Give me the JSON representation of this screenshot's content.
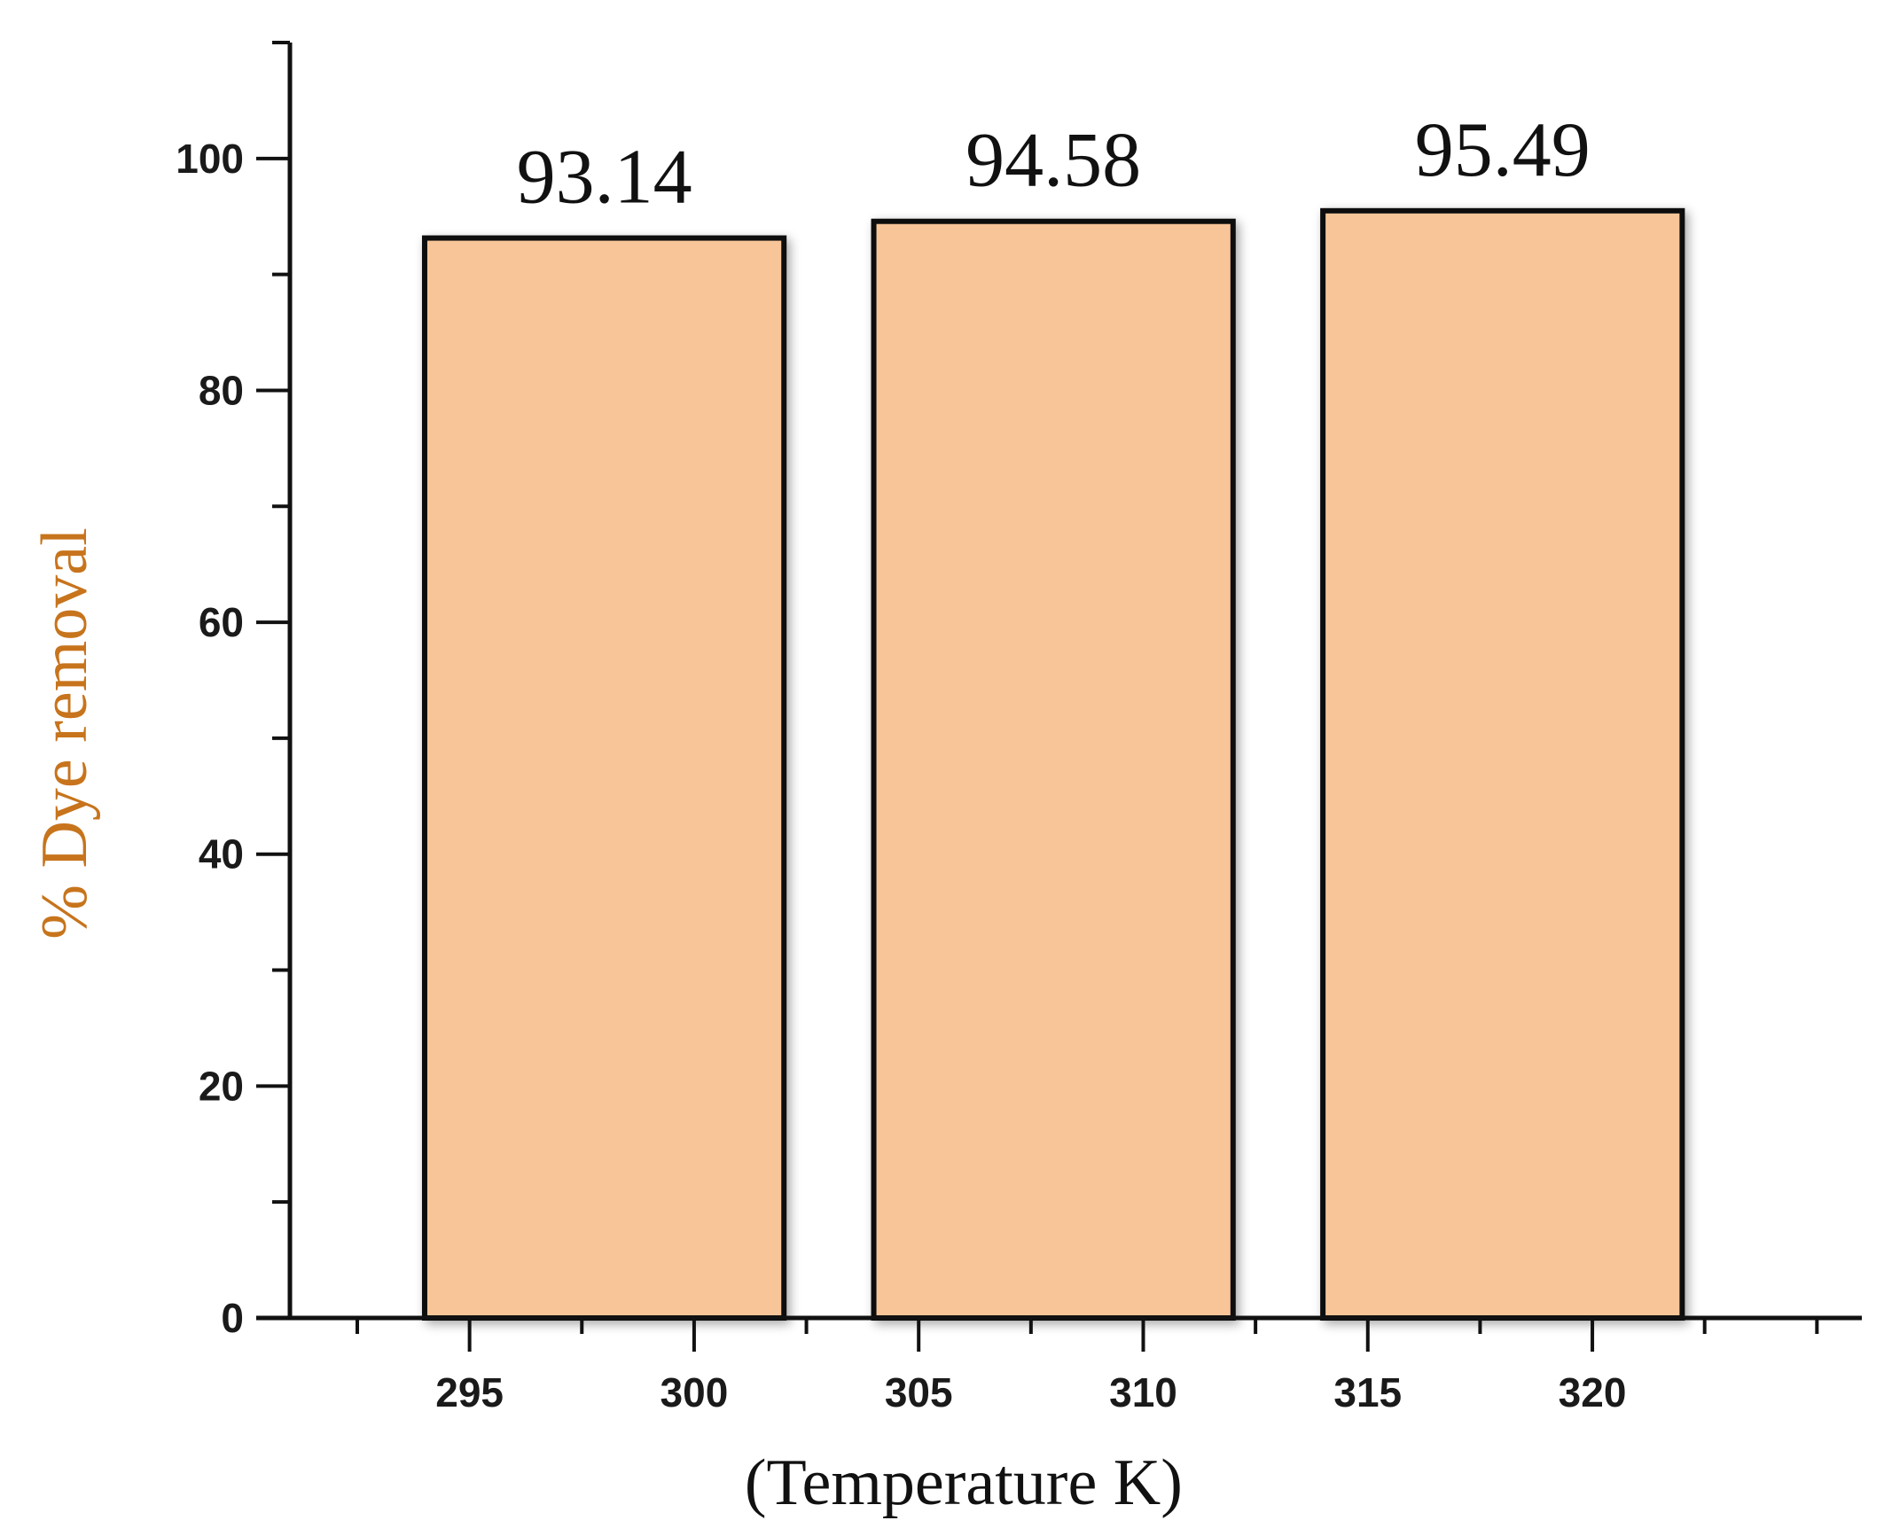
{
  "chart_data": {
    "type": "bar",
    "xlabel": "(Temperature K)",
    "ylabel": "% Dye removal",
    "bars": [
      {
        "x_start": 294,
        "x_end": 302,
        "value": 93.14,
        "label": "93.14"
      },
      {
        "x_start": 304,
        "x_end": 312,
        "value": 94.58,
        "label": "94.58"
      },
      {
        "x_start": 314,
        "x_end": 322,
        "value": 95.49,
        "label": "95.49"
      }
    ],
    "xlim": [
      291,
      326
    ],
    "ylim": [
      0,
      110
    ],
    "x_ticks": [
      295,
      300,
      305,
      310,
      315,
      320
    ],
    "y_ticks": [
      0,
      20,
      40,
      60,
      80,
      100
    ],
    "grid": false,
    "legend": "none",
    "colors": {
      "bar_fill": "#f8c598",
      "bar_edge": "#111111",
      "axis": "#111111",
      "ylabel": "#c7741c",
      "xlabel": "#111111"
    }
  }
}
